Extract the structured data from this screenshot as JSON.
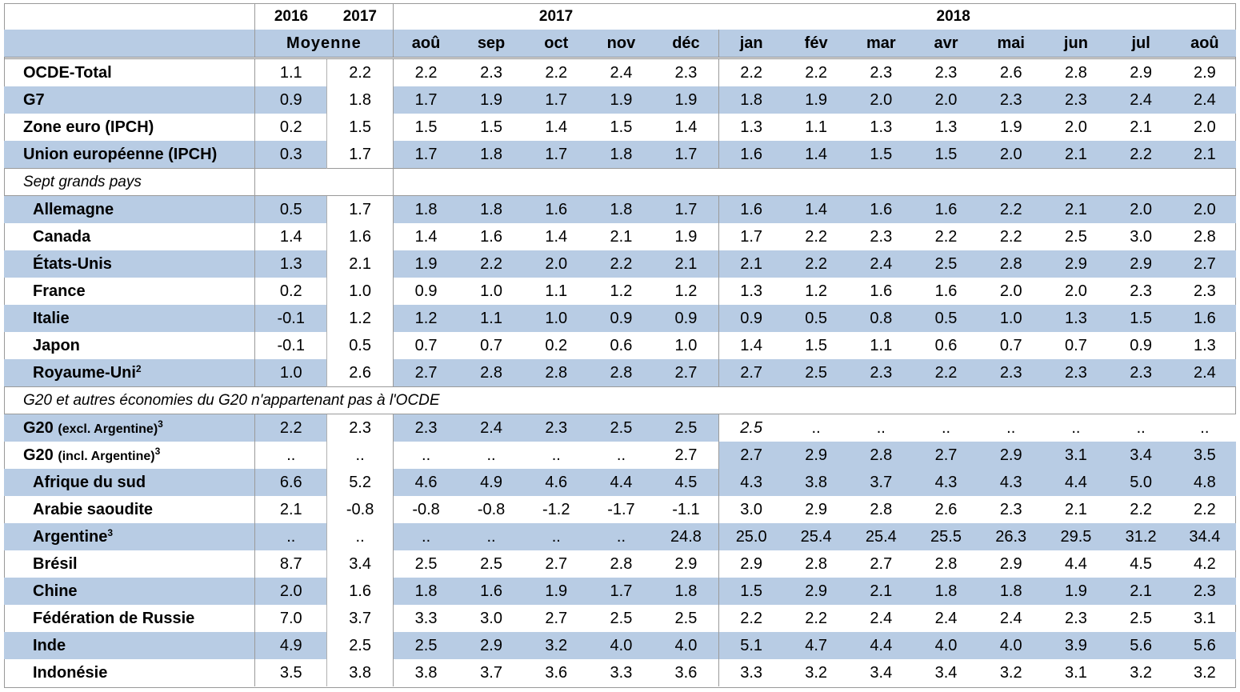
{
  "header": {
    "years_avg": [
      "2016",
      "2017"
    ],
    "avg_label": "Moyenne",
    "group_2017": "2017",
    "group_2018": "2018",
    "months": [
      "aoû",
      "sep",
      "oct",
      "nov",
      "déc",
      "jan",
      "fév",
      "mar",
      "avr",
      "mai",
      "jun",
      "jul",
      "aoû"
    ]
  },
  "colors": {
    "shade": "#b8cce4",
    "border": "#9a9a9a"
  },
  "rows": [
    {
      "label": "OCDE-Total",
      "values": [
        "1.1",
        "2.2",
        "2.2",
        "2.3",
        "2.2",
        "2.4",
        "2.3",
        "2.2",
        "2.2",
        "2.3",
        "2.3",
        "2.6",
        "2.8",
        "2.9",
        "2.9"
      ]
    },
    {
      "label": "G7",
      "values": [
        "0.9",
        "1.8",
        "1.7",
        "1.9",
        "1.7",
        "1.9",
        "1.9",
        "1.8",
        "1.9",
        "2.0",
        "2.0",
        "2.3",
        "2.3",
        "2.4",
        "2.4"
      ]
    },
    {
      "label": "Zone euro (IPCH)",
      "values": [
        "0.2",
        "1.5",
        "1.5",
        "1.5",
        "1.4",
        "1.5",
        "1.4",
        "1.3",
        "1.1",
        "1.3",
        "1.3",
        "1.9",
        "2.0",
        "2.1",
        "2.0"
      ]
    },
    {
      "label": "Union européenne (IPCH)",
      "values": [
        "0.3",
        "1.7",
        "1.7",
        "1.8",
        "1.7",
        "1.8",
        "1.7",
        "1.6",
        "1.4",
        "1.5",
        "1.5",
        "2.0",
        "2.1",
        "2.2",
        "2.1"
      ]
    },
    {
      "section": "Sept grands pays"
    },
    {
      "label": "Allemagne",
      "values": [
        "0.5",
        "1.7",
        "1.8",
        "1.8",
        "1.6",
        "1.8",
        "1.7",
        "1.6",
        "1.4",
        "1.6",
        "1.6",
        "2.2",
        "2.1",
        "2.0",
        "2.0"
      ]
    },
    {
      "label": "Canada",
      "values": [
        "1.4",
        "1.6",
        "1.4",
        "1.6",
        "1.4",
        "2.1",
        "1.9",
        "1.7",
        "2.2",
        "2.3",
        "2.2",
        "2.2",
        "2.5",
        "3.0",
        "2.8"
      ]
    },
    {
      "label": "États-Unis",
      "values": [
        "1.3",
        "2.1",
        "1.9",
        "2.2",
        "2.0",
        "2.2",
        "2.1",
        "2.1",
        "2.2",
        "2.4",
        "2.5",
        "2.8",
        "2.9",
        "2.9",
        "2.7"
      ]
    },
    {
      "label": "France",
      "values": [
        "0.2",
        "1.0",
        "0.9",
        "1.0",
        "1.1",
        "1.2",
        "1.2",
        "1.3",
        "1.2",
        "1.6",
        "1.6",
        "2.0",
        "2.0",
        "2.3",
        "2.3"
      ]
    },
    {
      "label": "Italie",
      "values": [
        "-0.1",
        "1.2",
        "1.2",
        "1.1",
        "1.0",
        "0.9",
        "0.9",
        "0.9",
        "0.5",
        "0.8",
        "0.5",
        "1.0",
        "1.3",
        "1.5",
        "1.6"
      ]
    },
    {
      "label": "Japon",
      "values": [
        "-0.1",
        "0.5",
        "0.7",
        "0.7",
        "0.2",
        "0.6",
        "1.0",
        "1.4",
        "1.5",
        "1.1",
        "0.6",
        "0.7",
        "0.7",
        "0.9",
        "1.3"
      ]
    },
    {
      "label": "Royaume-Uni",
      "sup": "2",
      "values": [
        "1.0",
        "2.6",
        "2.7",
        "2.8",
        "2.8",
        "2.8",
        "2.7",
        "2.7",
        "2.5",
        "2.3",
        "2.2",
        "2.3",
        "2.3",
        "2.3",
        "2.4"
      ]
    },
    {
      "section": "G20 et autres économies du G20 n'appartenant pas à l'OCDE"
    },
    {
      "label": "G20",
      "note": "(excl. Argentine)",
      "sup": "3",
      "values": [
        "2.2",
        "2.3",
        "2.3",
        "2.4",
        "2.3",
        "2.5",
        "2.5",
        "2.5",
        "..",
        "..",
        "..",
        "..",
        "..",
        "..",
        ".."
      ]
    },
    {
      "label": "G20",
      "note": "(incl. Argentine)",
      "sup": "3",
      "values": [
        "..",
        "..",
        "..",
        "..",
        "..",
        "..",
        "2.7",
        "2.7",
        "2.9",
        "2.8",
        "2.7",
        "2.9",
        "3.1",
        "3.4",
        "3.5"
      ]
    },
    {
      "label": "Afrique du sud",
      "values": [
        "6.6",
        "5.2",
        "4.6",
        "4.9",
        "4.6",
        "4.4",
        "4.5",
        "4.3",
        "3.8",
        "3.7",
        "4.3",
        "4.3",
        "4.4",
        "5.0",
        "4.8"
      ]
    },
    {
      "label": "Arabie saoudite",
      "values": [
        "2.1",
        "-0.8",
        "-0.8",
        "-0.8",
        "-1.2",
        "-1.7",
        "-1.1",
        "3.0",
        "2.9",
        "2.8",
        "2.6",
        "2.3",
        "2.1",
        "2.2",
        "2.2"
      ]
    },
    {
      "label": "Argentine",
      "sup": "3",
      "values": [
        "..",
        "..",
        "..",
        "..",
        "..",
        "..",
        "24.8",
        "25.0",
        "25.4",
        "25.4",
        "25.5",
        "26.3",
        "29.5",
        "31.2",
        "34.4"
      ]
    },
    {
      "label": "Brésil",
      "values": [
        "8.7",
        "3.4",
        "2.5",
        "2.5",
        "2.7",
        "2.8",
        "2.9",
        "2.9",
        "2.8",
        "2.7",
        "2.8",
        "2.9",
        "4.4",
        "4.5",
        "4.2"
      ]
    },
    {
      "label": "Chine",
      "values": [
        "2.0",
        "1.6",
        "1.8",
        "1.6",
        "1.9",
        "1.7",
        "1.8",
        "1.5",
        "2.9",
        "2.1",
        "1.8",
        "1.8",
        "1.9",
        "2.1",
        "2.3"
      ]
    },
    {
      "label": "Fédération de Russie",
      "values": [
        "7.0",
        "3.7",
        "3.3",
        "3.0",
        "2.7",
        "2.5",
        "2.5",
        "2.2",
        "2.2",
        "2.4",
        "2.4",
        "2.4",
        "2.3",
        "2.5",
        "3.1"
      ]
    },
    {
      "label": "Inde",
      "values": [
        "4.9",
        "2.5",
        "2.5",
        "2.9",
        "3.2",
        "4.0",
        "4.0",
        "5.1",
        "4.7",
        "4.4",
        "4.0",
        "4.0",
        "3.9",
        "5.6",
        "5.6"
      ]
    },
    {
      "label": "Indonésie",
      "values": [
        "3.5",
        "3.8",
        "3.8",
        "3.7",
        "3.6",
        "3.3",
        "3.6",
        "3.3",
        "3.2",
        "3.4",
        "3.4",
        "3.2",
        "3.1",
        "3.2",
        "3.2"
      ]
    }
  ]
}
